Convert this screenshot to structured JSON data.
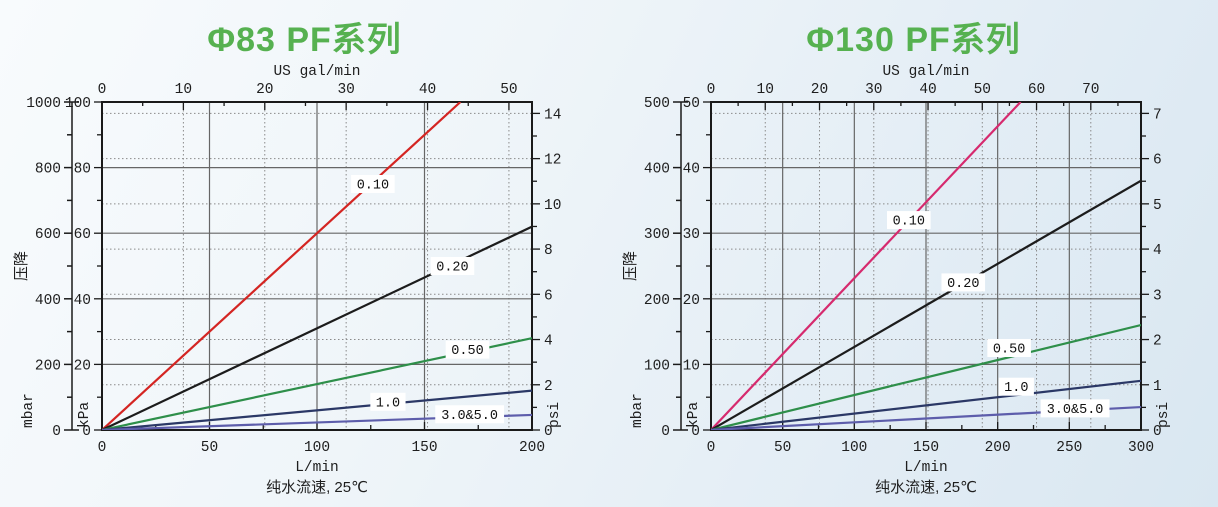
{
  "page": {
    "accent_green": "#56b150"
  },
  "chart_data": [
    {
      "id": "phi83-pf",
      "type": "line",
      "title": "Φ83 PF系列",
      "title_color": "#56b150",
      "ylabel": "压降",
      "caption": "纯水流速, 25℃",
      "axes": {
        "bottom": {
          "label": "L/min",
          "min": 0,
          "max": 200,
          "majors": [
            0,
            50,
            100,
            150,
            200
          ],
          "minor_step": 25
        },
        "top": {
          "label": "US gal/min",
          "majors": [
            0,
            10,
            20,
            30,
            40,
            50
          ],
          "minor_step": 5
        },
        "left": {
          "label": "kPa",
          "min": 0,
          "max": 100,
          "majors": [
            0,
            20,
            40,
            60,
            80,
            100
          ],
          "minor_step": 10
        },
        "left_outer": {
          "label": "mbar",
          "min": 0,
          "max": 1000,
          "majors": [
            0,
            200,
            400,
            600,
            800,
            1000
          ],
          "minor_step": 100
        },
        "right": {
          "label": "psi",
          "majors": [
            0,
            2,
            4,
            6,
            8,
            10,
            12,
            14
          ],
          "minor_step": 1
        }
      },
      "series": [
        {
          "name": "0.10",
          "color": "#d42522",
          "points": [
            [
              0,
              0
            ],
            [
              166.7,
              100
            ]
          ],
          "label_at": [
            126,
            75
          ]
        },
        {
          "name": "0.20",
          "color": "#1c1c1c",
          "points": [
            [
              0,
              0
            ],
            [
              200,
              62
            ]
          ],
          "label_at": [
            163,
            50
          ]
        },
        {
          "name": "0.50",
          "color": "#2e8f4a",
          "points": [
            [
              0,
              0
            ],
            [
              200,
              28
            ]
          ],
          "label_at": [
            170,
            24.5
          ]
        },
        {
          "name": "1.0",
          "color": "#2b3866",
          "points": [
            [
              0,
              0
            ],
            [
              200,
              12
            ]
          ],
          "label_at": [
            133,
            8.6
          ]
        },
        {
          "name": "3.0&5.0",
          "color": "#5d5dab",
          "points": [
            [
              0,
              0
            ],
            [
              200,
              4.6
            ]
          ],
          "label_at": [
            171,
            4.8
          ]
        }
      ]
    },
    {
      "id": "phi130-pf",
      "type": "line",
      "title": "Φ130 PF系列",
      "title_color": "#56b150",
      "ylabel": "压降",
      "caption": "纯水流速, 25℃",
      "axes": {
        "bottom": {
          "label": "L/min",
          "min": 0,
          "max": 300,
          "majors": [
            0,
            50,
            100,
            150,
            200,
            250,
            300
          ],
          "minor_step": 25
        },
        "top": {
          "label": "US gal/min",
          "majors": [
            0,
            10,
            20,
            30,
            40,
            50,
            60,
            70
          ],
          "minor_step": 5
        },
        "left": {
          "label": "kPa",
          "min": 0,
          "max": 50,
          "majors": [
            0,
            10,
            20,
            30,
            40,
            50
          ],
          "minor_step": 5
        },
        "left_outer": {
          "label": "mbar",
          "min": 0,
          "max": 500,
          "majors": [
            0,
            100,
            200,
            300,
            400,
            500
          ],
          "minor_step": 50
        },
        "right": {
          "label": "psi",
          "majors": [
            0,
            1,
            2,
            3,
            4,
            5,
            6,
            7
          ],
          "minor_step": 0.5
        }
      },
      "series": [
        {
          "name": "0.10",
          "color": "#d62a6e",
          "points": [
            [
              0,
              0
            ],
            [
              216,
              50
            ]
          ],
          "label_at": [
            138,
            32
          ]
        },
        {
          "name": "0.20",
          "color": "#1c1c1c",
          "points": [
            [
              0,
              0
            ],
            [
              300,
              38
            ]
          ],
          "label_at": [
            176,
            22.5
          ]
        },
        {
          "name": "0.50",
          "color": "#2e8f4a",
          "points": [
            [
              0,
              0
            ],
            [
              300,
              16
            ]
          ],
          "label_at": [
            208,
            12.5
          ]
        },
        {
          "name": "1.0",
          "color": "#2b3866",
          "points": [
            [
              0,
              0
            ],
            [
              300,
              7.5
            ]
          ],
          "label_at": [
            213,
            6.6
          ]
        },
        {
          "name": "3.0&5.0",
          "color": "#5d5dab",
          "points": [
            [
              0,
              0
            ],
            [
              300,
              3.5
            ]
          ],
          "label_at": [
            254,
            3.3
          ]
        }
      ]
    }
  ]
}
